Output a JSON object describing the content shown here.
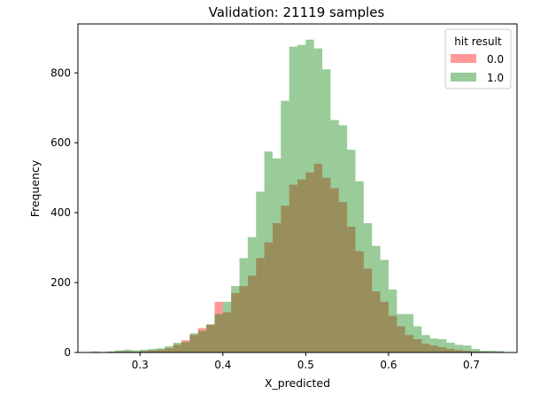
{
  "chart_data": {
    "type": "histogram",
    "title": "Validation: 21119 samples",
    "xlabel": "X_predicted",
    "ylabel": "Frequency",
    "xlim": [
      0.225,
      0.755
    ],
    "ylim": [
      0,
      940
    ],
    "xticks": [
      "0.3",
      "0.4",
      "0.5",
      "0.6",
      "0.7"
    ],
    "xtick_values": [
      0.3,
      0.4,
      0.5,
      0.6,
      0.7
    ],
    "yticks": [
      "0",
      "200",
      "400",
      "600",
      "800"
    ],
    "ytick_values": [
      0,
      200,
      400,
      600,
      800
    ],
    "bin_start": 0.24,
    "bin_width": 0.01,
    "legend": {
      "title": "hit result",
      "position": "top-right"
    },
    "series": [
      {
        "name": "0.0",
        "color": "#ff0000",
        "alpha": 0.4,
        "bins": [
          {
            "x": 0.245,
            "y": 3
          },
          {
            "x": 0.255,
            "y": 1
          },
          {
            "x": 0.265,
            "y": 2
          },
          {
            "x": 0.275,
            "y": 3
          },
          {
            "x": 0.285,
            "y": 3
          },
          {
            "x": 0.295,
            "y": 2
          },
          {
            "x": 0.305,
            "y": 4
          },
          {
            "x": 0.315,
            "y": 6
          },
          {
            "x": 0.325,
            "y": 8
          },
          {
            "x": 0.335,
            "y": 12
          },
          {
            "x": 0.345,
            "y": 22
          },
          {
            "x": 0.355,
            "y": 35
          },
          {
            "x": 0.365,
            "y": 50
          },
          {
            "x": 0.375,
            "y": 70
          },
          {
            "x": 0.385,
            "y": 80
          },
          {
            "x": 0.395,
            "y": 145
          },
          {
            "x": 0.405,
            "y": 115
          },
          {
            "x": 0.415,
            "y": 170
          },
          {
            "x": 0.425,
            "y": 190
          },
          {
            "x": 0.435,
            "y": 220
          },
          {
            "x": 0.445,
            "y": 270
          },
          {
            "x": 0.455,
            "y": 315
          },
          {
            "x": 0.465,
            "y": 370
          },
          {
            "x": 0.475,
            "y": 420
          },
          {
            "x": 0.485,
            "y": 480
          },
          {
            "x": 0.495,
            "y": 495
          },
          {
            "x": 0.505,
            "y": 515
          },
          {
            "x": 0.515,
            "y": 540
          },
          {
            "x": 0.525,
            "y": 500
          },
          {
            "x": 0.535,
            "y": 470
          },
          {
            "x": 0.545,
            "y": 430
          },
          {
            "x": 0.555,
            "y": 360
          },
          {
            "x": 0.565,
            "y": 290
          },
          {
            "x": 0.575,
            "y": 240
          },
          {
            "x": 0.585,
            "y": 175
          },
          {
            "x": 0.595,
            "y": 145
          },
          {
            "x": 0.605,
            "y": 105
          },
          {
            "x": 0.615,
            "y": 75
          },
          {
            "x": 0.625,
            "y": 50
          },
          {
            "x": 0.635,
            "y": 38
          },
          {
            "x": 0.645,
            "y": 25
          },
          {
            "x": 0.655,
            "y": 20
          },
          {
            "x": 0.665,
            "y": 15
          },
          {
            "x": 0.675,
            "y": 10
          },
          {
            "x": 0.685,
            "y": 7
          },
          {
            "x": 0.695,
            "y": 5
          },
          {
            "x": 0.705,
            "y": 3
          },
          {
            "x": 0.715,
            "y": 2
          },
          {
            "x": 0.725,
            "y": 1
          },
          {
            "x": 0.735,
            "y": 1
          }
        ]
      },
      {
        "name": "1.0",
        "color": "#008000",
        "alpha": 0.4,
        "bins": [
          {
            "x": 0.245,
            "y": 1
          },
          {
            "x": 0.255,
            "y": 1
          },
          {
            "x": 0.265,
            "y": 3
          },
          {
            "x": 0.275,
            "y": 6
          },
          {
            "x": 0.285,
            "y": 8
          },
          {
            "x": 0.295,
            "y": 6
          },
          {
            "x": 0.305,
            "y": 8
          },
          {
            "x": 0.315,
            "y": 10
          },
          {
            "x": 0.325,
            "y": 12
          },
          {
            "x": 0.335,
            "y": 18
          },
          {
            "x": 0.345,
            "y": 28
          },
          {
            "x": 0.355,
            "y": 30
          },
          {
            "x": 0.365,
            "y": 55
          },
          {
            "x": 0.375,
            "y": 62
          },
          {
            "x": 0.385,
            "y": 80
          },
          {
            "x": 0.395,
            "y": 110
          },
          {
            "x": 0.405,
            "y": 145
          },
          {
            "x": 0.415,
            "y": 190
          },
          {
            "x": 0.425,
            "y": 270
          },
          {
            "x": 0.435,
            "y": 330
          },
          {
            "x": 0.445,
            "y": 460
          },
          {
            "x": 0.455,
            "y": 575
          },
          {
            "x": 0.465,
            "y": 555
          },
          {
            "x": 0.475,
            "y": 720
          },
          {
            "x": 0.485,
            "y": 875
          },
          {
            "x": 0.495,
            "y": 880
          },
          {
            "x": 0.505,
            "y": 895
          },
          {
            "x": 0.515,
            "y": 870
          },
          {
            "x": 0.525,
            "y": 810
          },
          {
            "x": 0.535,
            "y": 665
          },
          {
            "x": 0.545,
            "y": 650
          },
          {
            "x": 0.555,
            "y": 580
          },
          {
            "x": 0.565,
            "y": 490
          },
          {
            "x": 0.575,
            "y": 370
          },
          {
            "x": 0.585,
            "y": 305
          },
          {
            "x": 0.595,
            "y": 265
          },
          {
            "x": 0.605,
            "y": 180
          },
          {
            "x": 0.615,
            "y": 110
          },
          {
            "x": 0.625,
            "y": 110
          },
          {
            "x": 0.635,
            "y": 75
          },
          {
            "x": 0.645,
            "y": 50
          },
          {
            "x": 0.655,
            "y": 40
          },
          {
            "x": 0.665,
            "y": 38
          },
          {
            "x": 0.675,
            "y": 28
          },
          {
            "x": 0.685,
            "y": 22
          },
          {
            "x": 0.695,
            "y": 20
          },
          {
            "x": 0.705,
            "y": 10
          },
          {
            "x": 0.715,
            "y": 5
          },
          {
            "x": 0.725,
            "y": 5
          },
          {
            "x": 0.735,
            "y": 4
          }
        ]
      }
    ]
  }
}
